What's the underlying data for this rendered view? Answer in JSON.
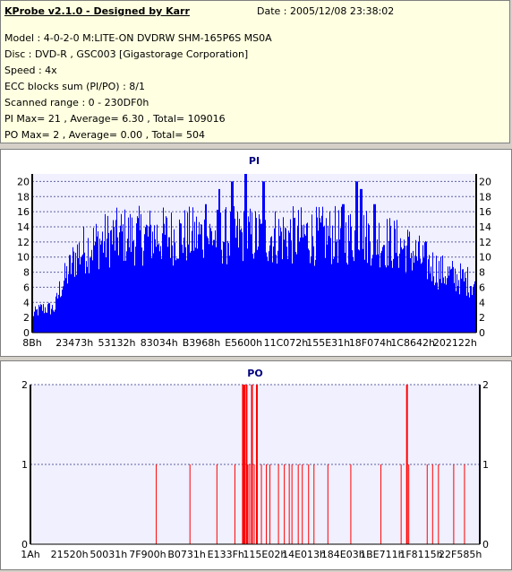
{
  "info": {
    "title": "KProbe v2.1.0 - Designed by Karr",
    "date": "Date : 2005/12/08 23:38:02",
    "lines": [
      "Model : 4-0-2-0 M:LITE-ON DVDRW SHM-165P6S MS0A",
      "Disc : DVD-R , GSC003 [Gigastorage Corporation]",
      "Speed : 4x",
      "ECC blocks sum (PI/PO) : 8/1",
      "Scanned range : 0 - 230DF0h",
      "PI Max= 21 , Average= 6.30 , Total= 109016",
      "PO Max= 2 , Average= 0.00 , Total= 504"
    ]
  },
  "colors": {
    "pi_fill": "#0000ff",
    "po_bar": "#ff0000",
    "plot_bg": "#f0f0ff",
    "grid": "#6060a0"
  },
  "chart_data": [
    {
      "type": "area",
      "title": "PI",
      "ylim": [
        0,
        21
      ],
      "yticks": [
        0,
        2,
        4,
        6,
        8,
        10,
        12,
        14,
        16,
        18,
        20
      ],
      "xtick_labels": [
        "8Bh",
        "23473h",
        "53132h",
        "83034h",
        "B3968h",
        "E5600h",
        "11C072h",
        "155E31h",
        "18F074h",
        "1C8642h",
        "202122h"
      ],
      "x_domain": [
        0,
        100
      ],
      "envelope": [
        [
          0,
          3
        ],
        [
          2,
          4
        ],
        [
          5,
          4
        ],
        [
          6,
          7
        ],
        [
          8,
          10
        ],
        [
          10,
          13
        ],
        [
          12,
          14
        ],
        [
          15,
          15
        ],
        [
          20,
          16
        ],
        [
          30,
          16
        ],
        [
          40,
          16
        ],
        [
          50,
          16
        ],
        [
          60,
          16
        ],
        [
          70,
          16
        ],
        [
          76,
          16
        ],
        [
          80,
          15
        ],
        [
          84,
          14
        ],
        [
          88,
          12
        ],
        [
          92,
          10
        ],
        [
          96,
          9
        ],
        [
          100,
          8
        ]
      ],
      "peaks": [
        [
          39,
          17
        ],
        [
          42,
          19
        ],
        [
          45,
          20
        ],
        [
          48,
          21
        ],
        [
          52,
          20
        ],
        [
          70,
          17
        ],
        [
          73,
          20
        ],
        [
          74,
          19
        ],
        [
          77,
          17
        ]
      ]
    },
    {
      "type": "bar",
      "title": "PO",
      "ylim": [
        0,
        2
      ],
      "yticks": [
        0,
        1,
        2
      ],
      "xtick_labels": [
        "1Ah",
        "21520h",
        "50031h",
        "7F900h",
        "B0731h",
        "E133Fh",
        "115E02h",
        "14E013h",
        "184E03h",
        "1BE711h",
        "1F8115h",
        "22F585h"
      ],
      "x_domain": [
        0,
        100
      ],
      "bars": [
        [
          28,
          1
        ],
        [
          35.5,
          1
        ],
        [
          41.5,
          1
        ],
        [
          45.5,
          1
        ],
        [
          47.3,
          2
        ],
        [
          47.6,
          2
        ],
        [
          48.1,
          2
        ],
        [
          48.4,
          1
        ],
        [
          48.8,
          1
        ],
        [
          49.3,
          2
        ],
        [
          49.8,
          1
        ],
        [
          50.4,
          2
        ],
        [
          51.4,
          1
        ],
        [
          52.5,
          1
        ],
        [
          53.3,
          1
        ],
        [
          55.2,
          1
        ],
        [
          56.5,
          1
        ],
        [
          57.6,
          1
        ],
        [
          58.2,
          1
        ],
        [
          59.6,
          1
        ],
        [
          60.5,
          1
        ],
        [
          61.9,
          1
        ],
        [
          63.1,
          1
        ],
        [
          66.2,
          1
        ],
        [
          71.3,
          1
        ],
        [
          78,
          1
        ],
        [
          82.5,
          1
        ],
        [
          83.8,
          2
        ],
        [
          84.2,
          1
        ],
        [
          88.3,
          1
        ],
        [
          89.5,
          1
        ],
        [
          90.8,
          1
        ],
        [
          94.2,
          1
        ],
        [
          96.6,
          1
        ]
      ]
    }
  ]
}
